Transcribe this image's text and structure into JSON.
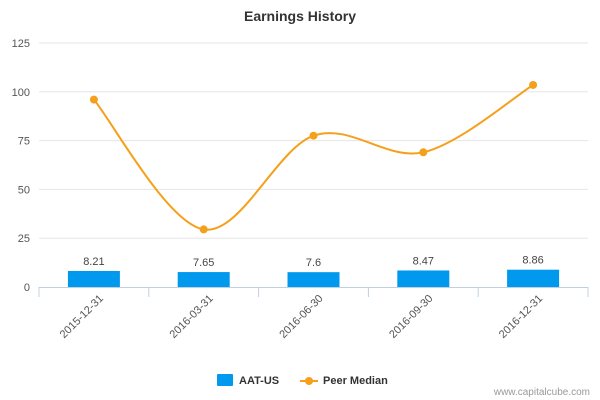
{
  "chart_data": {
    "type": "bar+line",
    "title": "Earnings History",
    "categories": [
      "2015-12-31",
      "2016-03-31",
      "2016-06-30",
      "2016-09-30",
      "2016-12-31"
    ],
    "series": [
      {
        "name": "AAT-US",
        "type": "bar",
        "color": "#0099ee",
        "values": [
          8.21,
          7.65,
          7.6,
          8.47,
          8.86
        ],
        "labels": [
          "8.21",
          "7.65",
          "7.6",
          "8.47",
          "8.86"
        ]
      },
      {
        "name": "Peer Median",
        "type": "line",
        "color": "#f5a01a",
        "values": [
          96,
          29.5,
          77.5,
          69,
          103.5
        ]
      }
    ],
    "yticks": [
      0,
      25,
      50,
      75,
      100,
      125
    ],
    "ylim": [
      0,
      125
    ],
    "xlabel": "",
    "ylabel": "",
    "legend_position": "bottom-center",
    "credit": "www.capitalcube.com"
  }
}
